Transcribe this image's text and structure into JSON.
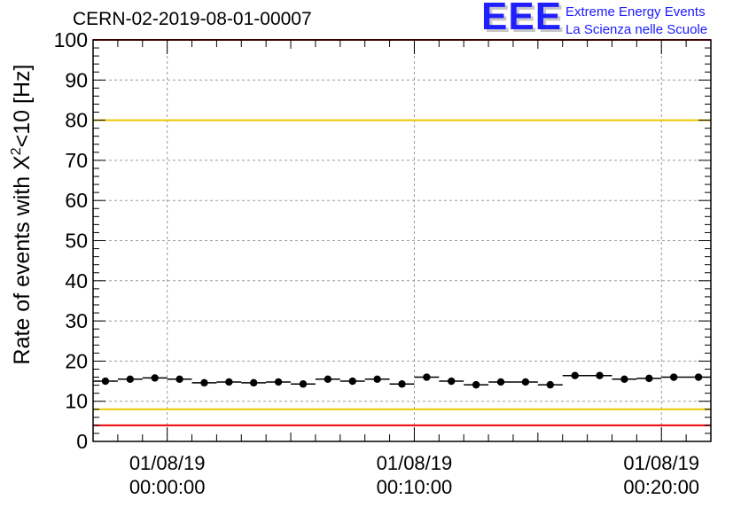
{
  "title": "CERN-02-2019-08-01-00007",
  "logo": {
    "mark": "EEE",
    "line1": "Extreme Energy Events",
    "line2": "La Scienza nelle Scuole"
  },
  "colors": {
    "points": "#000000",
    "threshold_high": "#e8c800",
    "threshold_low": "#e8c800",
    "limit_high": "#ee0000",
    "limit_low": "#ee0000",
    "grid": "#9a9a9a"
  },
  "chart_data": {
    "type": "scatter",
    "title": "CERN-02-2019-08-01-00007",
    "ylabel": {
      "pre": "Rate of events with X",
      "sup": "2",
      "post": "<10 [Hz]"
    },
    "xlabel": "",
    "ylim": [
      0,
      100
    ],
    "yticks": [
      "0",
      "10",
      "20",
      "30",
      "40",
      "50",
      "60",
      "70",
      "80",
      "90",
      "100"
    ],
    "xlim_minutes": [
      -3,
      22
    ],
    "xticks": [
      {
        "minute": 0,
        "date": "01/08/19",
        "time": "00:00:00"
      },
      {
        "minute": 10,
        "date": "01/08/19",
        "time": "00:10:00"
      },
      {
        "minute": 20,
        "date": "01/08/19",
        "time": "00:20:00"
      }
    ],
    "bin_width_minutes": 1,
    "points": [
      {
        "x_minute": -2.5,
        "y": 15.0
      },
      {
        "x_minute": -1.5,
        "y": 15.5
      },
      {
        "x_minute": -0.5,
        "y": 15.8
      },
      {
        "x_minute": 0.5,
        "y": 15.5
      },
      {
        "x_minute": 1.5,
        "y": 14.6
      },
      {
        "x_minute": 2.5,
        "y": 14.8
      },
      {
        "x_minute": 3.5,
        "y": 14.6
      },
      {
        "x_minute": 4.5,
        "y": 14.8
      },
      {
        "x_minute": 5.5,
        "y": 14.3
      },
      {
        "x_minute": 6.5,
        "y": 15.5
      },
      {
        "x_minute": 7.5,
        "y": 15.0
      },
      {
        "x_minute": 8.5,
        "y": 15.5
      },
      {
        "x_minute": 9.5,
        "y": 14.3
      },
      {
        "x_minute": 10.5,
        "y": 16.0
      },
      {
        "x_minute": 11.5,
        "y": 15.0
      },
      {
        "x_minute": 12.5,
        "y": 14.1
      },
      {
        "x_minute": 13.5,
        "y": 14.8
      },
      {
        "x_minute": 14.5,
        "y": 14.8
      },
      {
        "x_minute": 15.5,
        "y": 14.1
      },
      {
        "x_minute": 16.5,
        "y": 16.4
      },
      {
        "x_minute": 17.5,
        "y": 16.4
      },
      {
        "x_minute": 18.5,
        "y": 15.5
      },
      {
        "x_minute": 19.5,
        "y": 15.7
      },
      {
        "x_minute": 20.5,
        "y": 16.0
      },
      {
        "x_minute": 21.5,
        "y": 16.0
      }
    ],
    "reference_lines": [
      {
        "y": 100,
        "color": "#ee0000"
      },
      {
        "y": 80,
        "color": "#e8c800"
      },
      {
        "y": 8,
        "color": "#e8c800"
      },
      {
        "y": 4,
        "color": "#ee0000"
      }
    ],
    "grid": true,
    "legend": "none"
  }
}
